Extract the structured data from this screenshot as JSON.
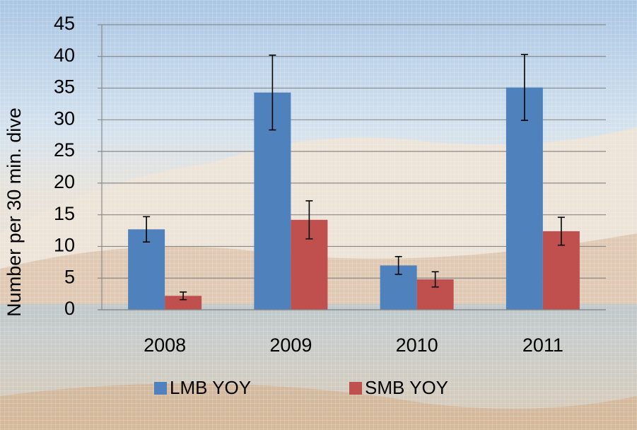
{
  "chart_data": {
    "type": "bar",
    "ylabel": "Number per 30 min. dive",
    "categories": [
      "2008",
      "2009",
      "2010",
      "2011"
    ],
    "series": [
      {
        "name": "LMB YOY",
        "color": "#4f81bd",
        "values": [
          12.7,
          34.3,
          7.0,
          35.1
        ],
        "errors": [
          2.0,
          5.9,
          1.4,
          5.2
        ]
      },
      {
        "name": "SMB YOY",
        "color": "#c0504d",
        "values": [
          2.2,
          14.2,
          4.8,
          12.4
        ],
        "errors": [
          0.6,
          3.0,
          1.2,
          2.2
        ]
      }
    ],
    "ylim": [
      0,
      45
    ],
    "yticks": [
      0,
      5,
      10,
      15,
      20,
      25,
      30,
      35,
      40,
      45
    ],
    "grid": true,
    "legend": "bottom"
  }
}
